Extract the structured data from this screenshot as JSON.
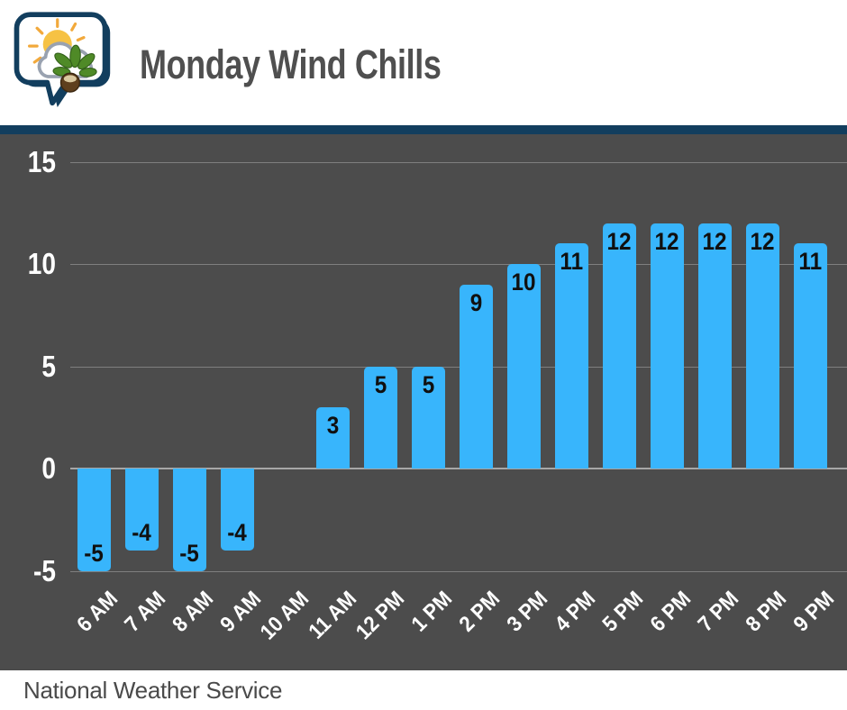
{
  "header": {
    "title": "Monday Wind Chills",
    "logo": "weather-speech-bubble-logo"
  },
  "footer": {
    "source": "National Weather Service"
  },
  "colors": {
    "accent_navy": "#123e5e",
    "chart_background": "#4c4c4c",
    "bar_fill": "#38b5fc",
    "bar_label": "#101010",
    "axis_label": "#ffffff",
    "title_text": "#4f4f4f",
    "footer_text": "#4a4a4a"
  },
  "chart_data": {
    "type": "bar",
    "title": "Monday Wind Chills",
    "categories": [
      "6 AM",
      "7 AM",
      "8 AM",
      "9 AM",
      "10 AM",
      "11 AM",
      "12 PM",
      "1 PM",
      "2 PM",
      "3 PM",
      "4 PM",
      "5 PM",
      "6 PM",
      "7 PM",
      "8 PM",
      "9 PM"
    ],
    "values": [
      -5,
      -4,
      -5,
      -4,
      0,
      3,
      5,
      5,
      9,
      10,
      11,
      12,
      12,
      12,
      12,
      11
    ],
    "xlabel": "",
    "ylabel": "",
    "ylim": [
      -5,
      15
    ],
    "yticks": [
      15,
      10,
      5,
      0,
      -5
    ],
    "grid": true,
    "legend": "none",
    "bar_value_labels_shown": true,
    "zero_value_bars_hidden": true
  }
}
